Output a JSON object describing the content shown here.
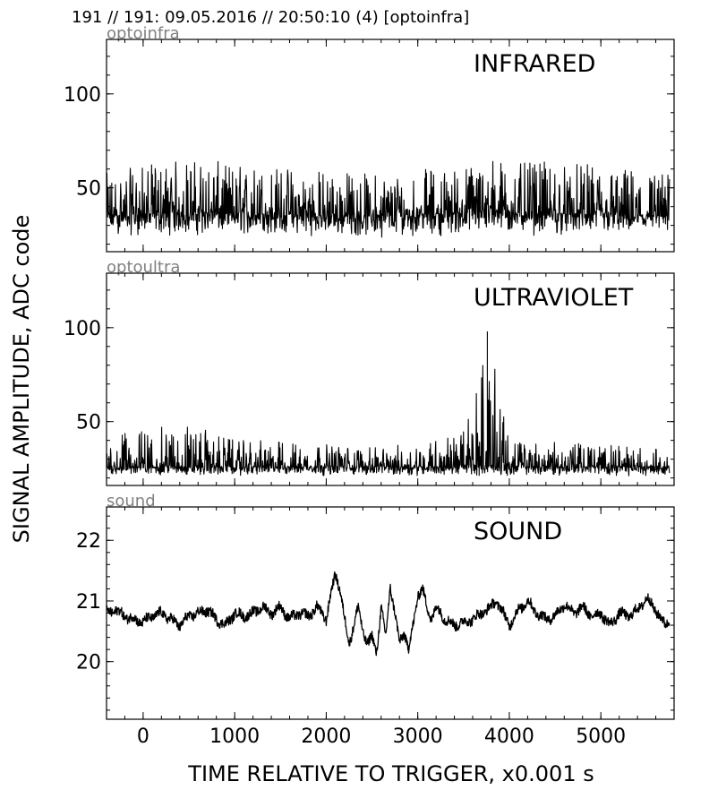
{
  "header": "191 // 191:   09.05.2016 // 20:50:10 (4)  [optoinfra]",
  "ylabel": "SIGNAL AMPLITUDE,  ADC code",
  "xlabel": "TIME RELATIVE TO TRIGGER,   x0.001 s",
  "colors": {
    "trace": "#000000",
    "frame": "#000000",
    "channel_label": "#808080"
  },
  "chart_data": [
    {
      "type": "line",
      "channel": "optoinfra",
      "title": "INFRARED",
      "xlim": [
        -400,
        5800
      ],
      "ylim": [
        16,
        129
      ],
      "xticks": [
        0,
        1000,
        2000,
        3000,
        4000,
        5000
      ],
      "yticks": [
        50,
        100
      ],
      "show_xtick_labels": false,
      "grid": false,
      "series": [
        {
          "x": [
            -400,
            0,
            500,
            1000,
            1500,
            2000,
            2500,
            3000,
            3500,
            3800,
            4000,
            4500,
            5000,
            5500,
            5750
          ],
          "y": [
            35,
            36,
            37,
            36,
            36,
            35,
            35,
            36,
            37,
            39,
            37,
            36,
            36,
            35,
            35
          ],
          "y_min": [
            24,
            24,
            24,
            24,
            24,
            24,
            23,
            24,
            24,
            24,
            24,
            24,
            24,
            24,
            24
          ],
          "y_max": [
            58,
            62,
            66,
            63,
            62,
            60,
            58,
            60,
            62,
            68,
            63,
            64,
            62,
            60,
            58
          ]
        }
      ]
    },
    {
      "type": "line",
      "channel": "optoultra",
      "title": "ULTRAVIOLET",
      "xlim": [
        -400,
        5800
      ],
      "ylim": [
        16,
        129
      ],
      "xticks": [
        0,
        1000,
        2000,
        3000,
        4000,
        5000
      ],
      "yticks": [
        50,
        100
      ],
      "show_xtick_labels": false,
      "grid": false,
      "series": [
        {
          "x": [
            -400,
            0,
            500,
            1000,
            1500,
            2000,
            2500,
            3000,
            3500,
            3760,
            4000,
            4500,
            5000,
            5500,
            5750
          ],
          "y": [
            26,
            26,
            26,
            26,
            26,
            26,
            26,
            26,
            26,
            27,
            26,
            26,
            26,
            26,
            26
          ],
          "y_min": [
            21,
            21,
            21,
            21,
            21,
            21,
            21,
            21,
            21,
            21,
            21,
            21,
            21,
            21,
            21
          ],
          "y_max": [
            42,
            46,
            49,
            40,
            40,
            38,
            36,
            39,
            45,
            98,
            40,
            39,
            38,
            36,
            36
          ],
          "spike": {
            "x": 3760,
            "y": 98
          }
        }
      ]
    },
    {
      "type": "line",
      "channel": "sound",
      "title": "SOUND",
      "xlim": [
        -400,
        5800
      ],
      "ylim": [
        19.05,
        22.55
      ],
      "xticks": [
        0,
        1000,
        2000,
        3000,
        4000,
        5000
      ],
      "yticks": [
        20,
        21,
        22
      ],
      "show_xtick_labels": true,
      "grid": false,
      "series": [
        {
          "x": [
            -400,
            -300,
            -200,
            -100,
            0,
            100,
            200,
            300,
            400,
            500,
            600,
            700,
            800,
            900,
            1000,
            1100,
            1200,
            1300,
            1400,
            1500,
            1600,
            1700,
            1800,
            1900,
            2000,
            2050,
            2100,
            2150,
            2200,
            2250,
            2300,
            2350,
            2400,
            2450,
            2500,
            2550,
            2600,
            2650,
            2700,
            2750,
            2800,
            2850,
            2900,
            2950,
            3000,
            3050,
            3100,
            3150,
            3200,
            3300,
            3400,
            3500,
            3600,
            3700,
            3800,
            3850,
            3900,
            4000,
            4100,
            4200,
            4300,
            4400,
            4500,
            4600,
            4700,
            4800,
            4900,
            5000,
            5100,
            5200,
            5300,
            5400,
            5500,
            5600,
            5700,
            5750
          ],
          "y": [
            20.8,
            20.85,
            20.75,
            20.7,
            20.65,
            20.75,
            20.8,
            20.7,
            20.6,
            20.75,
            20.8,
            20.85,
            20.7,
            20.6,
            20.8,
            20.75,
            20.8,
            20.9,
            20.8,
            20.9,
            20.7,
            20.8,
            20.75,
            20.9,
            20.7,
            21.1,
            21.45,
            21.2,
            20.7,
            20.3,
            20.6,
            20.9,
            20.5,
            20.3,
            20.4,
            20.15,
            20.9,
            20.4,
            21.25,
            20.8,
            20.3,
            20.5,
            20.2,
            20.6,
            21.1,
            21.2,
            20.9,
            20.7,
            20.9,
            20.7,
            20.6,
            20.65,
            20.7,
            20.8,
            20.9,
            21.0,
            20.9,
            20.6,
            20.85,
            21.0,
            20.8,
            20.7,
            20.75,
            20.95,
            20.8,
            20.9,
            20.75,
            20.8,
            20.6,
            20.8,
            20.75,
            20.85,
            21.05,
            20.85,
            20.6,
            20.7
          ],
          "band_width": 0.08
        }
      ]
    }
  ]
}
